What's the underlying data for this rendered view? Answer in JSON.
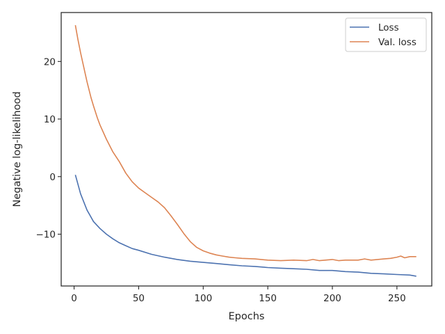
{
  "chart_data": {
    "type": "line",
    "title": "",
    "xlabel": "Epochs",
    "ylabel": "Negative log-likelihood",
    "xlim": [
      -10,
      277
    ],
    "ylim": [
      -19,
      28.5
    ],
    "xticks": [
      0,
      50,
      100,
      150,
      200,
      250
    ],
    "yticks": [
      -10,
      0,
      10,
      20
    ],
    "ytick_labels": [
      "−10",
      "0",
      "10",
      "20"
    ],
    "grid": false,
    "legend": "top-right",
    "colors": {
      "loss": "#4c72b0",
      "val_loss": "#dd8452",
      "axes": "#262626"
    },
    "series": [
      {
        "name": "Loss",
        "color": "#4c72b0",
        "x": [
          1,
          5,
          10,
          15,
          20,
          25,
          30,
          35,
          40,
          45,
          50,
          60,
          70,
          80,
          90,
          100,
          110,
          120,
          130,
          140,
          150,
          160,
          170,
          180,
          190,
          200,
          210,
          220,
          230,
          240,
          250,
          260,
          265
        ],
        "y": [
          0.3,
          -3.0,
          -5.8,
          -7.8,
          -9.0,
          -10.0,
          -10.8,
          -11.5,
          -12.0,
          -12.5,
          -12.8,
          -13.5,
          -14.0,
          -14.4,
          -14.7,
          -14.9,
          -15.1,
          -15.3,
          -15.5,
          -15.6,
          -15.8,
          -15.9,
          -16.0,
          -16.1,
          -16.3,
          -16.3,
          -16.5,
          -16.6,
          -16.8,
          -16.9,
          -17.0,
          -17.1,
          -17.3
        ]
      },
      {
        "name": "Val. loss",
        "color": "#dd8452",
        "x": [
          1,
          3,
          5,
          8,
          10,
          13,
          15,
          18,
          20,
          25,
          30,
          35,
          40,
          45,
          50,
          55,
          60,
          65,
          70,
          75,
          80,
          85,
          90,
          95,
          100,
          105,
          110,
          115,
          120,
          125,
          130,
          140,
          150,
          160,
          170,
          180,
          185,
          190,
          200,
          205,
          210,
          220,
          225,
          230,
          240,
          245,
          250,
          253,
          256,
          260,
          265
        ],
        "y": [
          26.3,
          23.8,
          21.5,
          18.5,
          16.5,
          13.8,
          12.3,
          10.2,
          9.0,
          6.5,
          4.3,
          2.6,
          0.6,
          -0.9,
          -2.0,
          -2.8,
          -3.6,
          -4.4,
          -5.4,
          -6.8,
          -8.3,
          -9.9,
          -11.3,
          -12.3,
          -12.9,
          -13.3,
          -13.6,
          -13.8,
          -14.0,
          -14.1,
          -14.2,
          -14.3,
          -14.5,
          -14.6,
          -14.5,
          -14.6,
          -14.4,
          -14.6,
          -14.4,
          -14.6,
          -14.5,
          -14.5,
          -14.3,
          -14.5,
          -14.3,
          -14.2,
          -14.0,
          -13.8,
          -14.1,
          -13.9,
          -13.9
        ]
      }
    ]
  }
}
